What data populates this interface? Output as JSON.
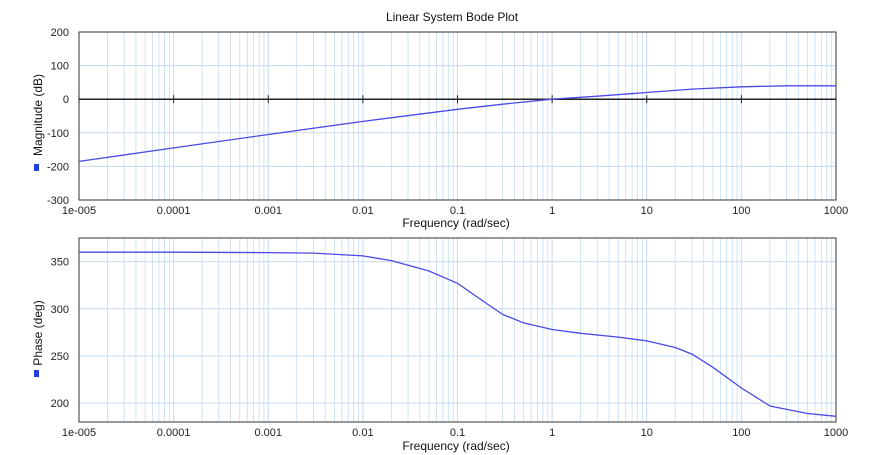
{
  "title": "Linear System Bode Plot",
  "colors": {
    "curve": "#4a4ae6",
    "grid": "#c5dcf2",
    "axis": "#333333",
    "zero_line": "#222222",
    "legend_marker": "#2040dd"
  },
  "chart_data": [
    {
      "type": "line",
      "x_scale": "log",
      "xlabel": "Frequency (rad/sec)",
      "ylabel": "Magnitude (dB)",
      "xlim": [
        1e-05,
        1000
      ],
      "ylim": [
        -300,
        200
      ],
      "x_tick_labels": [
        "1e-005",
        "0.0001",
        "0.001",
        "0.01",
        "0.1",
        "1",
        "10",
        "100",
        "1000"
      ],
      "y_tick_labels": [
        "200",
        "100",
        "0",
        "-100",
        "-200",
        "-300"
      ],
      "grid": true,
      "legend_marker": "left",
      "series": [
        {
          "x": [
            1e-05,
            0.0001,
            0.001,
            0.01,
            0.1,
            0.3,
            1,
            3,
            10,
            30,
            100,
            300,
            1000
          ],
          "values": [
            -185,
            -145,
            -105,
            -66,
            -30,
            -15,
            0,
            9,
            20,
            30,
            37,
            40,
            40
          ]
        }
      ]
    },
    {
      "type": "line",
      "x_scale": "log",
      "xlabel": "Frequency (rad/sec)",
      "ylabel": "Phase (deg)",
      "xlim": [
        1e-05,
        1000
      ],
      "ylim": [
        180,
        375
      ],
      "x_tick_labels": [
        "1e-005",
        "0.0001",
        "0.001",
        "0.01",
        "0.1",
        "1",
        "10",
        "100",
        "1000"
      ],
      "y_tick_labels": [
        "350",
        "300",
        "250",
        "200"
      ],
      "grid": true,
      "legend_marker": "left",
      "series": [
        {
          "x": [
            1e-05,
            0.0001,
            0.001,
            0.003,
            0.01,
            0.02,
            0.05,
            0.1,
            0.2,
            0.3,
            0.5,
            1,
            2,
            5,
            10,
            20,
            30,
            50,
            100,
            200,
            500,
            1000
          ],
          "values": [
            360,
            360,
            359.5,
            359,
            356,
            351,
            340,
            327,
            306,
            294,
            285,
            278,
            274,
            270,
            266,
            259,
            252,
            238,
            216,
            197,
            189,
            186
          ]
        }
      ]
    }
  ]
}
